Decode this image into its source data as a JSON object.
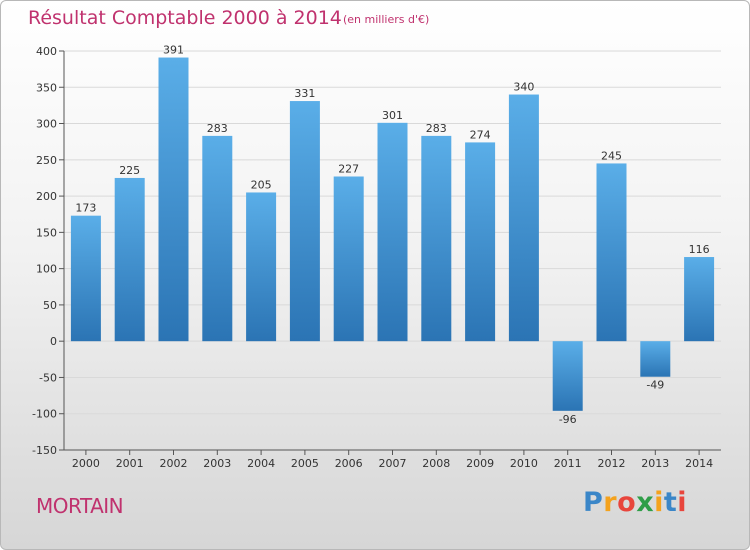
{
  "header": {
    "title": "Résultat Comptable 2000 à 2014",
    "subtitle": "(en milliers d'€)"
  },
  "footer": {
    "commune": "MORTAIN",
    "logo_text": "Proxiti"
  },
  "colors": {
    "bar_top": "#5aaee8",
    "bar_bottom": "#2b74b4",
    "title": "#c0326e",
    "grid": "#d9d9d9"
  },
  "chart_data": {
    "type": "bar",
    "title": "Résultat Comptable 2000 à 2014",
    "subtitle": "(en milliers d'€)",
    "xlabel": "",
    "ylabel": "",
    "categories": [
      "2000",
      "2001",
      "2002",
      "2003",
      "2004",
      "2005",
      "2006",
      "2007",
      "2008",
      "2009",
      "2010",
      "2011",
      "2012",
      "2013",
      "2014"
    ],
    "values": [
      173,
      225,
      391,
      283,
      205,
      331,
      227,
      301,
      283,
      274,
      340,
      -96,
      245,
      -49,
      116
    ],
    "ylim": [
      -150,
      400
    ],
    "yticks": [
      -150,
      -100,
      -50,
      0,
      50,
      100,
      150,
      200,
      250,
      300,
      350,
      400
    ],
    "grid": true,
    "legend": "none"
  }
}
